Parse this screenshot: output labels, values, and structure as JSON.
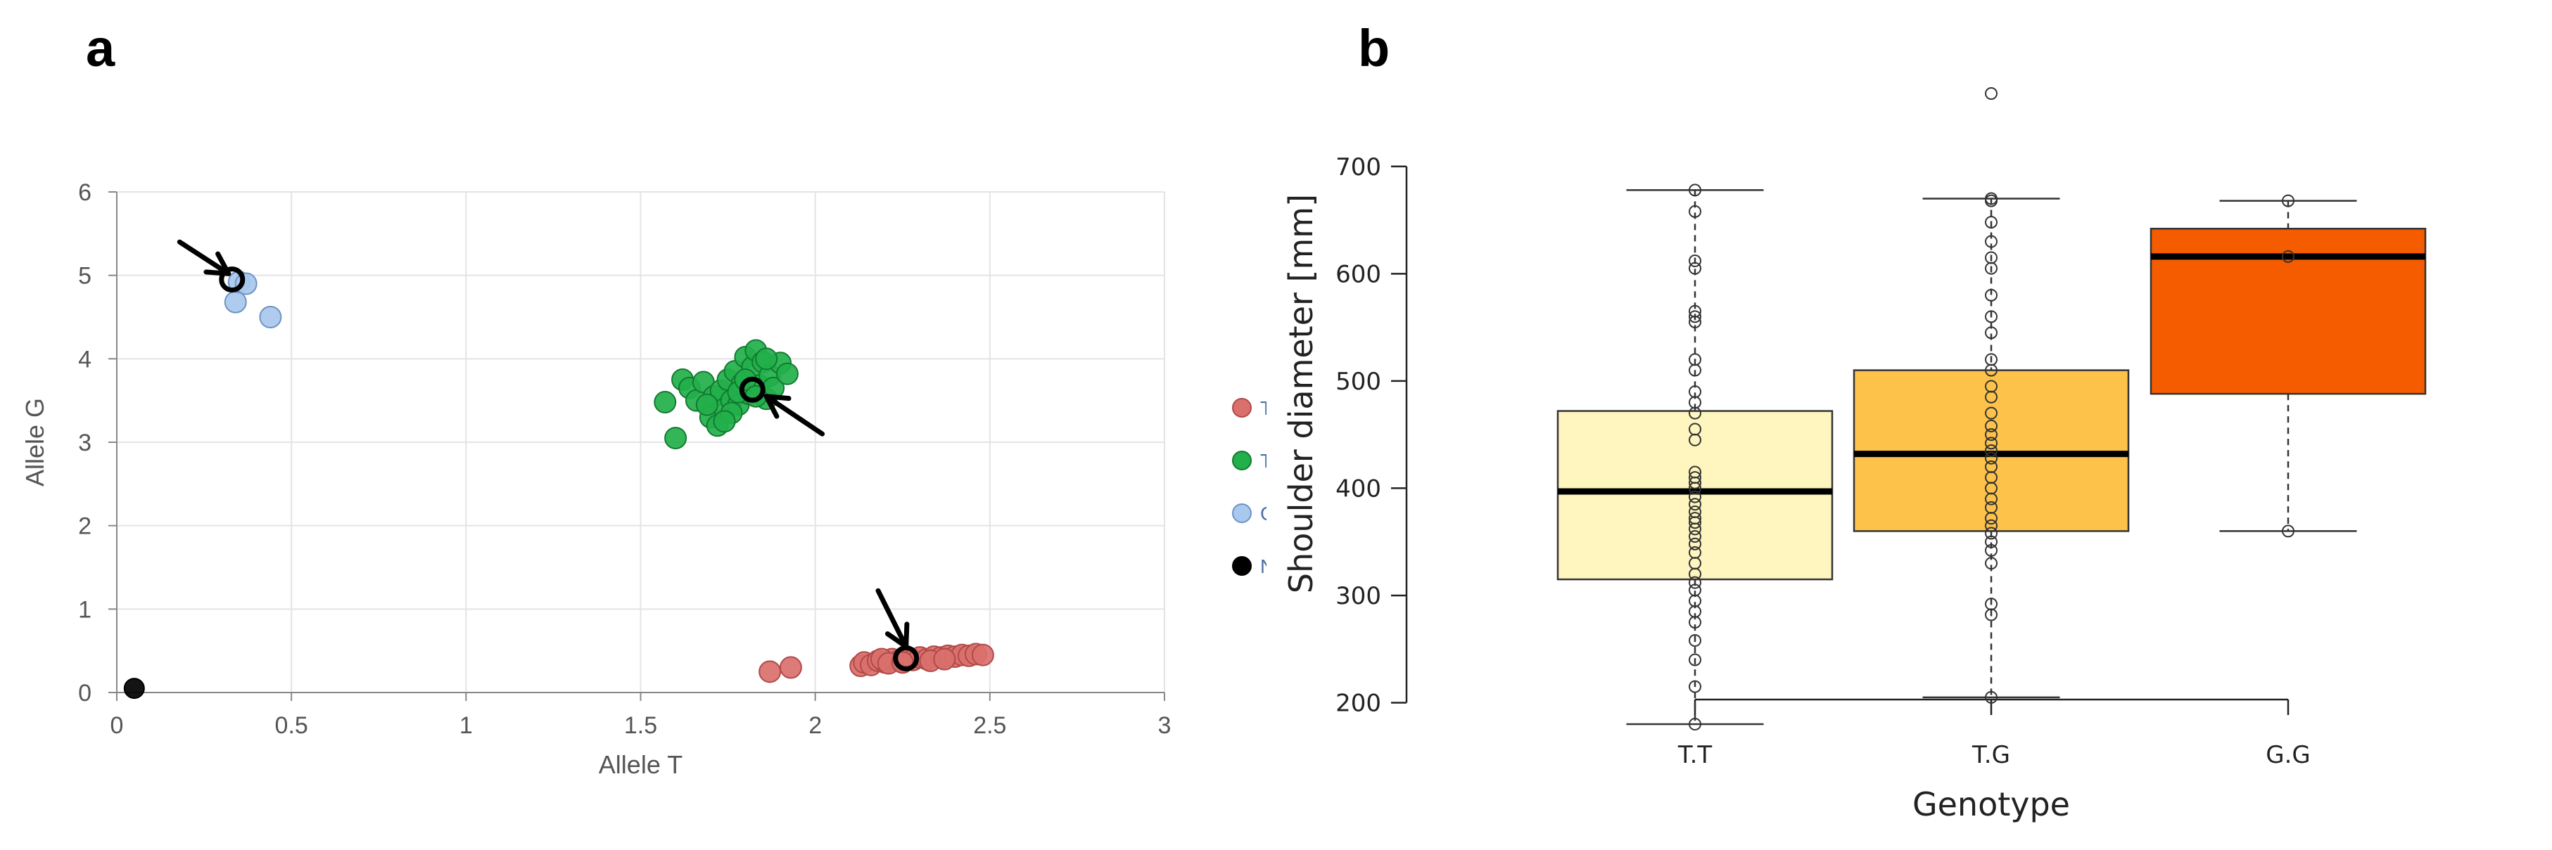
{
  "panels": {
    "a": "a",
    "b": "b"
  },
  "chart_data": [
    {
      "type": "scatter",
      "panel": "a",
      "title": "",
      "xlabel": "Allele T",
      "ylabel": "Allele G",
      "xlim": [
        0,
        3
      ],
      "ylim": [
        0,
        6
      ],
      "xticks": [
        "0",
        "0.5",
        "1",
        "1.5",
        "2",
        "2.5",
        "3"
      ],
      "yticks": [
        "0",
        "1",
        "2",
        "3",
        "4",
        "5",
        "6"
      ],
      "grid": true,
      "legend_position": "right",
      "series": [
        {
          "name": "T/T",
          "color": "#d9706c",
          "stroke": "#b04a48",
          "points": [
            [
              1.87,
              0.25
            ],
            [
              1.93,
              0.3
            ],
            [
              2.13,
              0.32
            ],
            [
              2.14,
              0.36
            ],
            [
              2.16,
              0.33
            ],
            [
              2.18,
              0.38
            ],
            [
              2.2,
              0.36
            ],
            [
              2.22,
              0.4
            ],
            [
              2.24,
              0.38
            ],
            [
              2.26,
              0.41
            ],
            [
              2.28,
              0.39
            ],
            [
              2.3,
              0.42
            ],
            [
              2.32,
              0.4
            ],
            [
              2.34,
              0.43
            ],
            [
              2.36,
              0.42
            ],
            [
              2.38,
              0.44
            ],
            [
              2.4,
              0.43
            ],
            [
              2.42,
              0.45
            ],
            [
              2.44,
              0.44
            ],
            [
              2.46,
              0.46
            ],
            [
              2.48,
              0.45
            ],
            [
              2.19,
              0.4
            ],
            [
              2.21,
              0.35
            ],
            [
              2.25,
              0.36
            ],
            [
              2.33,
              0.38
            ],
            [
              2.37,
              0.4
            ]
          ]
        },
        {
          "name": "T/G",
          "color": "#22b04a",
          "stroke": "#137a31",
          "points": [
            [
              1.57,
              3.48
            ],
            [
              1.6,
              3.05
            ],
            [
              1.62,
              3.75
            ],
            [
              1.64,
              3.65
            ],
            [
              1.66,
              3.5
            ],
            [
              1.68,
              3.72
            ],
            [
              1.7,
              3.3
            ],
            [
              1.71,
              3.55
            ],
            [
              1.72,
              3.2
            ],
            [
              1.73,
              3.62
            ],
            [
              1.74,
              3.4
            ],
            [
              1.75,
              3.75
            ],
            [
              1.76,
              3.5
            ],
            [
              1.77,
              3.85
            ],
            [
              1.78,
              3.45
            ],
            [
              1.79,
              3.7
            ],
            [
              1.8,
              4.02
            ],
            [
              1.81,
              3.58
            ],
            [
              1.82,
              3.9
            ],
            [
              1.83,
              4.1
            ],
            [
              1.84,
              3.68
            ],
            [
              1.85,
              3.96
            ],
            [
              1.86,
              3.52
            ],
            [
              1.87,
              3.8
            ],
            [
              1.88,
              3.65
            ],
            [
              1.9,
              3.95
            ],
            [
              1.92,
              3.82
            ],
            [
              1.76,
              3.35
            ],
            [
              1.78,
              3.6
            ],
            [
              1.8,
              3.75
            ],
            [
              1.74,
              3.25
            ],
            [
              1.69,
              3.45
            ],
            [
              1.83,
              3.55
            ],
            [
              1.86,
              4.0
            ]
          ]
        },
        {
          "name": "G/G",
          "color": "#a8c8ee",
          "stroke": "#6f93c2",
          "points": [
            [
              0.34,
              4.68
            ],
            [
              0.35,
              4.92
            ],
            [
              0.37,
              4.9
            ],
            [
              0.44,
              4.5
            ]
          ]
        },
        {
          "name": "NTC",
          "color": "#000000",
          "stroke": "#000000",
          "points": [
            [
              0.05,
              0.05
            ]
          ]
        }
      ],
      "highlighted_points": [
        [
          0.33,
          4.95
        ],
        [
          1.82,
          3.63
        ],
        [
          2.26,
          0.41
        ]
      ],
      "annotations": [
        "arrow",
        "arrow",
        "arrow"
      ]
    },
    {
      "type": "box",
      "panel": "b",
      "title": "",
      "xlabel": "Genotype",
      "ylabel": "Shoulder diameter  [mm]",
      "ylim": [
        180,
        770
      ],
      "yticks": [
        "200",
        "300",
        "400",
        "500",
        "600",
        "700"
      ],
      "categories": [
        "T.T",
        "T.G",
        "G.G"
      ],
      "boxes": [
        {
          "name": "T.T",
          "color": "#fff5bf",
          "whisker_low": 180,
          "q1": 315,
          "median": 397,
          "q3": 472,
          "whisker_high": 678,
          "points": [
            180,
            215,
            240,
            258,
            275,
            285,
            295,
            305,
            312,
            320,
            330,
            340,
            348,
            355,
            362,
            368,
            372,
            378,
            385,
            392,
            400,
            405,
            410,
            415,
            445,
            455,
            470,
            480,
            490,
            510,
            520,
            555,
            560,
            565,
            605,
            612,
            658,
            678
          ]
        },
        {
          "name": "T.G",
          "color": "#fdc24a",
          "whisker_low": 205,
          "q1": 360,
          "median": 432,
          "q3": 510,
          "whisker_high": 670,
          "points": [
            205,
            282,
            292,
            330,
            342,
            350,
            358,
            365,
            372,
            382,
            390,
            400,
            410,
            420,
            428,
            435,
            442,
            450,
            458,
            470,
            485,
            495,
            510,
            520,
            545,
            560,
            580,
            605,
            615,
            630,
            648,
            668,
            670,
            768
          ]
        },
        {
          "name": "G.G",
          "color": "#f55c00",
          "whisker_low": 360,
          "q1": 488,
          "median": 616,
          "q3": 642,
          "whisker_high": 668,
          "points": [
            360,
            616,
            668
          ]
        }
      ]
    }
  ]
}
